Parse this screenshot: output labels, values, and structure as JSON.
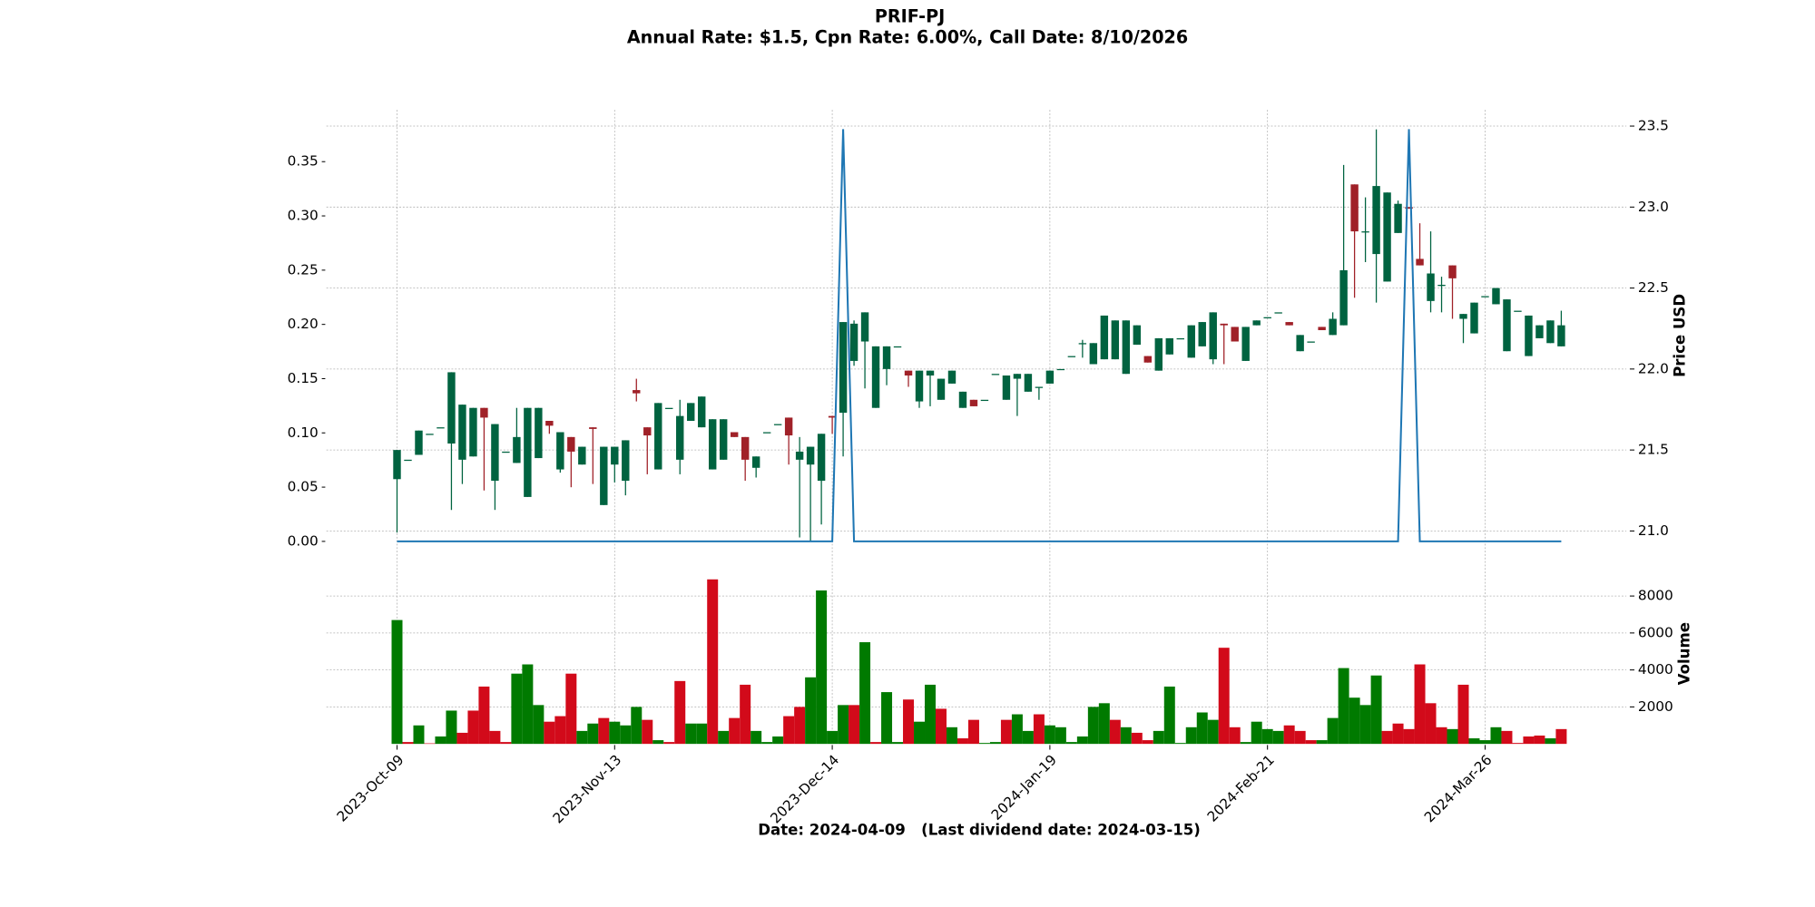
{
  "chart_data": {
    "type": "candlestick",
    "title": "PRIF-PJ",
    "subtitle": "Annual Rate: $1.5, Cpn Rate: 6.00%, Call Date: 8/10/2026",
    "xlabel": "Date: 2024-04-09   (Last dividend date: 2024-03-15)",
    "y2label": "Price USD",
    "volume_label": "Volume",
    "x": [
      "2023-Oct-09",
      null,
      null,
      null,
      null,
      null,
      null,
      null,
      null,
      null,
      null,
      null,
      null,
      null,
      null,
      null,
      null,
      null,
      null,
      null,
      "2023-Nov-13",
      null,
      null,
      null,
      null,
      null,
      null,
      null,
      null,
      null,
      null,
      null,
      null,
      null,
      null,
      null,
      null,
      null,
      null,
      null,
      "2023-Dec-14",
      null,
      null,
      null,
      null,
      null,
      null,
      null,
      null,
      null,
      null,
      null,
      null,
      null,
      null,
      null,
      null,
      null,
      null,
      null,
      "2024-Jan-19",
      null,
      null,
      null,
      null,
      null,
      null,
      null,
      null,
      null,
      null,
      null,
      null,
      null,
      null,
      null,
      null,
      null,
      null,
      null,
      "2024-Feb-21",
      null,
      null,
      null,
      null,
      null,
      null,
      null,
      null,
      null,
      null,
      null,
      null,
      null,
      null,
      null,
      null,
      null,
      null,
      null,
      "2024-Mar-26",
      null,
      null,
      null,
      null,
      null,
      null,
      null
    ],
    "open": [
      21.32,
      21.44,
      21.47,
      21.6,
      21.64,
      21.54,
      21.44,
      21.46,
      21.76,
      21.31,
      21.49,
      21.42,
      21.21,
      21.45,
      21.68,
      21.38,
      21.58,
      21.41,
      21.64,
      21.16,
      21.41,
      21.31,
      21.87,
      21.64,
      21.38,
      21.76,
      21.44,
      21.68,
      21.64,
      21.38,
      21.44,
      21.61,
      21.58,
      21.39,
      21.61,
      21.66,
      21.7,
      21.44,
      21.41,
      21.31,
      21.71,
      21.73,
      22.05,
      22.17,
      21.76,
      22.0,
      22.14,
      21.99,
      21.8,
      21.96,
      21.81,
      21.91,
      21.76,
      21.81,
      21.81,
      21.97,
      21.81,
      21.94,
      21.86,
      21.89,
      21.91,
      22.0,
      22.08,
      22.16,
      22.03,
      22.06,
      22.06,
      21.97,
      22.15,
      22.08,
      21.99,
      22.09,
      22.19,
      22.07,
      22.14,
      22.06,
      22.28,
      22.26,
      22.05,
      22.27,
      22.32,
      22.35,
      22.29,
      22.11,
      22.17,
      22.26,
      22.21,
      22.27,
      23.14,
      22.85,
      22.71,
      22.54,
      22.84,
      23.0,
      22.68,
      22.42,
      22.52,
      22.64,
      22.31,
      22.22,
      22.45,
      22.4,
      22.11,
      22.36,
      22.08,
      22.19,
      22.16,
      22.14
    ],
    "high": [
      21.5,
      21.44,
      21.62,
      21.6,
      21.64,
      21.98,
      21.78,
      21.76,
      21.76,
      21.66,
      21.49,
      21.76,
      21.76,
      21.76,
      21.68,
      21.61,
      21.58,
      21.52,
      21.64,
      21.52,
      21.52,
      21.56,
      21.94,
      21.64,
      21.79,
      21.76,
      21.81,
      21.79,
      21.83,
      21.69,
      21.69,
      21.61,
      21.58,
      21.46,
      21.61,
      21.66,
      21.7,
      21.58,
      21.52,
      21.6,
      21.71,
      22.29,
      22.3,
      22.35,
      22.14,
      22.14,
      22.14,
      21.99,
      21.99,
      21.99,
      21.94,
      21.99,
      21.86,
      21.81,
      21.81,
      21.97,
      21.96,
      21.97,
      21.97,
      21.89,
      21.99,
      22.0,
      22.08,
      22.18,
      22.16,
      22.33,
      22.3,
      22.3,
      22.27,
      22.08,
      22.19,
      22.19,
      22.19,
      22.27,
      22.29,
      22.35,
      22.28,
      22.26,
      22.26,
      22.3,
      22.32,
      22.35,
      22.29,
      22.21,
      22.17,
      22.26,
      22.35,
      23.26,
      23.14,
      23.06,
      23.48,
      23.09,
      23.04,
      23.0,
      22.9,
      22.85,
      22.57,
      22.64,
      22.34,
      22.41,
      22.45,
      22.5,
      22.43,
      22.36,
      22.33,
      22.27,
      22.3,
      22.36
    ],
    "low": [
      20.99,
      21.44,
      21.47,
      21.6,
      21.64,
      21.13,
      21.29,
      21.46,
      21.25,
      21.13,
      21.49,
      21.42,
      21.21,
      21.45,
      21.6,
      21.36,
      21.27,
      21.41,
      21.29,
      21.16,
      21.3,
      21.22,
      21.8,
      21.35,
      21.38,
      21.76,
      21.35,
      21.68,
      21.64,
      21.38,
      21.44,
      21.58,
      21.31,
      21.33,
      21.61,
      21.66,
      21.41,
      20.96,
      20.94,
      21.04,
      21.6,
      21.46,
      22.02,
      21.88,
      21.76,
      21.9,
      22.14,
      21.89,
      21.76,
      21.77,
      21.81,
      21.91,
      21.76,
      21.77,
      21.81,
      21.97,
      21.81,
      21.71,
      21.86,
      21.81,
      21.91,
      22.0,
      22.08,
      22.07,
      22.03,
      22.06,
      22.06,
      21.97,
      22.15,
      22.04,
      21.99,
      22.09,
      22.19,
      22.07,
      22.14,
      22.03,
      22.03,
      22.17,
      22.05,
      22.27,
      22.32,
      22.35,
      22.27,
      22.11,
      22.17,
      22.24,
      22.21,
      22.27,
      22.44,
      22.66,
      22.41,
      22.54,
      22.84,
      22.99,
      22.64,
      22.35,
      22.35,
      22.31,
      22.16,
      22.22,
      22.45,
      22.4,
      22.11,
      22.36,
      22.08,
      22.19,
      22.16,
      22.14
    ],
    "close": [
      21.5,
      21.44,
      21.62,
      21.6,
      21.64,
      21.98,
      21.78,
      21.76,
      21.7,
      21.66,
      21.49,
      21.58,
      21.76,
      21.76,
      21.65,
      21.61,
      21.49,
      21.52,
      21.63,
      21.52,
      21.52,
      21.56,
      21.85,
      21.59,
      21.79,
      21.76,
      21.71,
      21.79,
      21.83,
      21.69,
      21.69,
      21.58,
      21.44,
      21.46,
      21.61,
      21.66,
      21.59,
      21.49,
      21.52,
      21.6,
      21.7,
      22.29,
      22.28,
      22.35,
      22.14,
      22.14,
      22.14,
      21.96,
      21.99,
      21.99,
      21.94,
      21.99,
      21.86,
      21.77,
      21.81,
      21.97,
      21.96,
      21.97,
      21.97,
      21.89,
      21.99,
      22.0,
      22.08,
      22.16,
      22.16,
      22.33,
      22.3,
      22.3,
      22.27,
      22.04,
      22.19,
      22.19,
      22.19,
      22.27,
      22.29,
      22.35,
      22.27,
      22.17,
      22.26,
      22.3,
      22.32,
      22.35,
      22.27,
      22.21,
      22.17,
      22.24,
      22.31,
      22.61,
      22.85,
      22.85,
      23.13,
      23.09,
      23.02,
      22.99,
      22.64,
      22.59,
      22.52,
      22.56,
      22.34,
      22.41,
      22.45,
      22.5,
      22.43,
      22.36,
      22.33,
      22.27,
      22.3,
      22.27
    ],
    "volume": [
      6700,
      100,
      1000,
      30,
      400,
      1800,
      600,
      1800,
      3100,
      700,
      100,
      3800,
      4300,
      2100,
      1200,
      1500,
      3800,
      700,
      1100,
      1400,
      1200,
      1000,
      2000,
      1300,
      200,
      100,
      3400,
      1100,
      1100,
      8900,
      700,
      1400,
      3200,
      700,
      100,
      400,
      1500,
      2000,
      3600,
      8300,
      700,
      2100,
      2100,
      5500,
      100,
      2800,
      100,
      2400,
      1200,
      3200,
      1900,
      900,
      300,
      1300,
      50,
      100,
      1300,
      1600,
      700,
      1600,
      1000,
      900,
      100,
      400,
      2000,
      2200,
      1300,
      900,
      600,
      200,
      700,
      3100,
      50,
      900,
      1700,
      1300,
      5200,
      900,
      100,
      1200,
      800,
      700,
      1000,
      700,
      200,
      200,
      1400,
      4100,
      2500,
      2100,
      3700,
      700,
      1100,
      800,
      4300,
      2200,
      900,
      800,
      3200,
      300,
      200,
      900,
      700,
      50,
      400,
      450,
      300,
      800
    ],
    "dividend": {
      "color": "#1f77b4",
      "values": [
        0,
        0,
        0,
        0,
        0,
        0,
        0,
        0,
        0,
        0,
        0,
        0,
        0,
        0,
        0,
        0,
        0,
        0,
        0,
        0,
        0,
        0,
        0,
        0,
        0,
        0,
        0,
        0,
        0,
        0,
        0,
        0,
        0,
        0,
        0,
        0,
        0,
        0,
        0,
        0,
        0,
        0.38,
        0,
        0,
        0,
        0,
        0,
        0,
        0,
        0,
        0,
        0,
        0,
        0,
        0,
        0,
        0,
        0,
        0,
        0,
        0,
        0,
        0,
        0,
        0,
        0,
        0,
        0,
        0,
        0,
        0,
        0,
        0,
        0,
        0,
        0,
        0,
        0,
        0,
        0,
        0,
        0,
        0,
        0,
        0,
        0,
        0,
        0,
        0,
        0,
        0,
        0,
        0,
        0.38,
        0,
        0,
        0,
        0,
        0,
        0,
        0,
        0,
        0,
        0,
        0,
        0,
        0,
        0
      ]
    },
    "ylim": [
      -0.0107,
      0.3977
    ],
    "yticks": [
      {
        "value": 0,
        "label": "0.00"
      },
      {
        "value": 0.05,
        "label": "0.05"
      },
      {
        "value": 0.1,
        "label": "0.10"
      },
      {
        "value": 0.15,
        "label": "0.15"
      },
      {
        "value": 0.2,
        "label": "0.20"
      },
      {
        "value": 0.25,
        "label": "0.25"
      },
      {
        "value": 0.3,
        "label": "0.30"
      },
      {
        "value": 0.35,
        "label": "0.35"
      }
    ],
    "y2lim": [
      20.864,
      23.6
    ],
    "y2ticks": [
      {
        "value": 21,
        "label": "21.0"
      },
      {
        "value": 21.5,
        "label": "21.5"
      },
      {
        "value": 22,
        "label": "22.0"
      },
      {
        "value": 22.5,
        "label": "22.5"
      },
      {
        "value": 23,
        "label": "23.0"
      },
      {
        "value": 23.5,
        "label": "23.5"
      }
    ],
    "volume_ylim": [
      0,
      9200
    ],
    "volume_yticks": [
      2000,
      4000,
      6000,
      8000
    ],
    "up_color": "#006340",
    "down_color": "#a02128",
    "volume_up_color": "#007a00",
    "volume_down_color": "#d20a1a",
    "grid": true
  }
}
